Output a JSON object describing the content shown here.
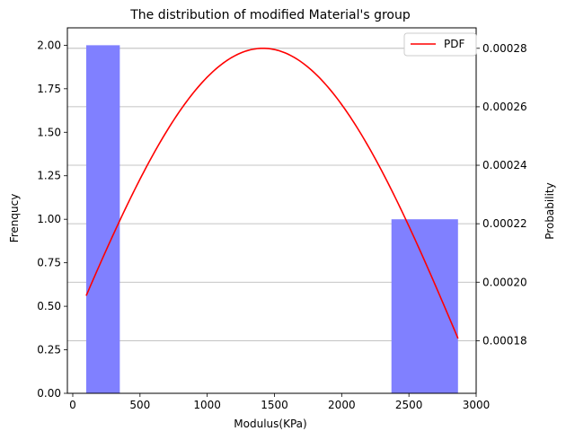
{
  "chart_data": {
    "type": "bar",
    "title": "The distribution of modified Material's group",
    "xlabel": "Modulus(KPa)",
    "ylabel": "Frenqucy",
    "y2label": "Probability",
    "xlim": [
      -40,
      3000
    ],
    "ylim": [
      0,
      2.1
    ],
    "y2lim": [
      0.000162,
      0.000287
    ],
    "xticks": [
      0,
      500,
      1000,
      1500,
      2000,
      2500,
      3000
    ],
    "xtick_labels": [
      "0",
      "500",
      "1000",
      "1500",
      "2000",
      "2500",
      "3000"
    ],
    "yticks": [
      0.0,
      0.25,
      0.5,
      0.75,
      1.0,
      1.25,
      1.5,
      1.75,
      2.0
    ],
    "ytick_labels": [
      "0.00",
      "0.25",
      "0.50",
      "0.75",
      "1.00",
      "1.25",
      "1.50",
      "1.75",
      "2.00"
    ],
    "y2ticks": [
      0.00018,
      0.0002,
      0.00022,
      0.00024,
      0.00026,
      0.00028
    ],
    "y2tick_labels": [
      "0.00018",
      "0.00020",
      "0.00022",
      "0.00024",
      "0.00026",
      "0.00028"
    ],
    "grid": "horizontal (secondary axis)",
    "legend_position": "top-right",
    "bars": [
      {
        "x0": 100,
        "x1": 350,
        "value": 2
      },
      {
        "x0": 2370,
        "x1": 2865,
        "value": 1
      }
    ],
    "bar_color": "#8080ff",
    "series": [
      {
        "name": "PDF",
        "color": "#ff0000",
        "axis": "right",
        "mean": 1415,
        "sd": 1550,
        "peak": 0.00028,
        "x_start": 100,
        "x_end": 2865
      }
    ]
  }
}
